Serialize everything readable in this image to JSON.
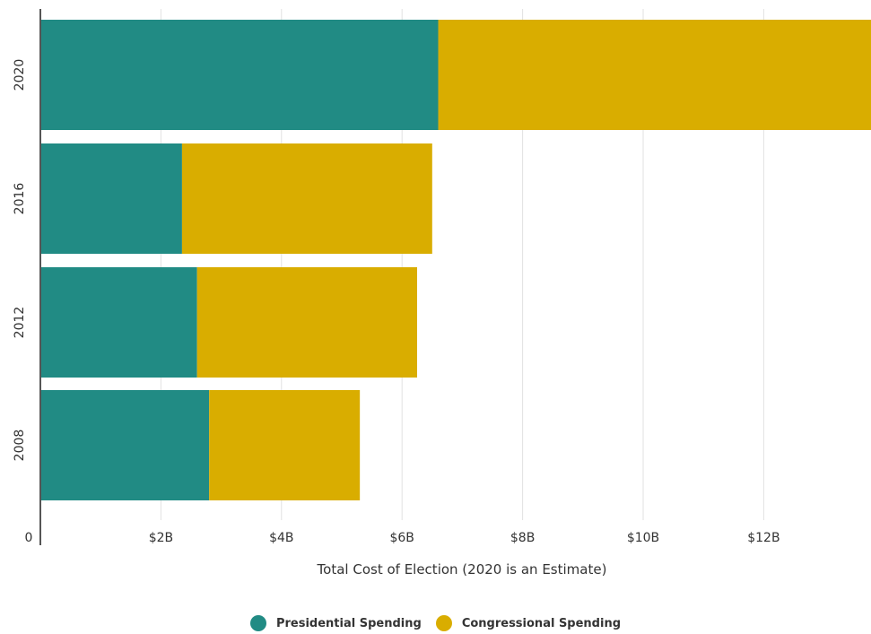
{
  "chart_data": {
    "type": "bar",
    "orientation": "horizontal",
    "stacked": true,
    "categories": [
      "2020",
      "2016",
      "2012",
      "2008"
    ],
    "series": [
      {
        "name": "Presidential Spending",
        "color": "#218b84",
        "values": [
          6.6,
          2.35,
          2.6,
          2.8
        ]
      },
      {
        "name": "Congressional Spending",
        "color": "#d9ad00",
        "values": [
          7.2,
          4.15,
          3.65,
          2.5
        ]
      }
    ],
    "xlabel": "Total Cost of Election (2020 is an Estimate)",
    "ylabel": "",
    "xlim": [
      0,
      13.8
    ],
    "x_ticks": [
      {
        "value": 0,
        "label": "0"
      },
      {
        "value": 2,
        "label": "$2B"
      },
      {
        "value": 4,
        "label": "$4B"
      },
      {
        "value": 6,
        "label": "$6B"
      },
      {
        "value": 8,
        "label": "$8B"
      },
      {
        "value": 10,
        "label": "$10B"
      },
      {
        "value": 12,
        "label": "$12B"
      }
    ],
    "grid": true,
    "legend_position": "bottom-center"
  }
}
